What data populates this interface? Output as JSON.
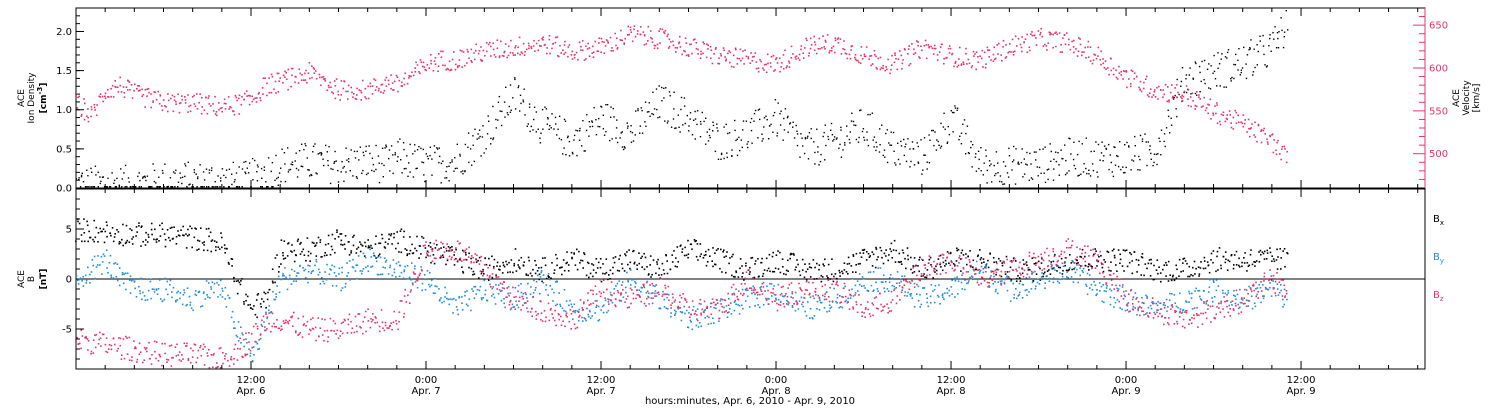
{
  "chart_data": [
    {
      "type": "scatter",
      "panel": "top",
      "ylabel_left": {
        "line1": "ACE",
        "line2": "Ion Density",
        "unit": "[cm",
        "unit_sup": "-3",
        "unit_end": "]"
      },
      "ylabel_right": {
        "line1": "ACE",
        "line2": "Velocity",
        "unit": "[km/s]"
      },
      "ylim_left": [
        0,
        2.3
      ],
      "yticks_left": [
        "0.0",
        "0.5",
        "1.0",
        "1.5",
        "2.0"
      ],
      "ylim_right": [
        460,
        670
      ],
      "yticks_right": [
        "500",
        "550",
        "600",
        "650"
      ],
      "x_range_hours": [
        0,
        92.5
      ],
      "series": [
        {
          "color": "#000000",
          "axis": "left",
          "x": [
            0,
            2,
            4,
            6,
            8,
            10,
            11.5,
            13,
            14,
            16,
            18,
            20,
            21.5,
            22,
            24,
            26,
            28,
            30,
            32,
            34,
            36,
            38,
            40,
            42,
            44,
            46,
            48,
            50,
            52,
            54,
            56,
            58,
            60,
            62,
            64,
            66,
            68,
            70,
            72,
            74,
            76,
            78,
            80,
            82,
            83
          ],
          "y": [
            0.05,
            0.05,
            0.05,
            0.1,
            0.1,
            0.1,
            0.1,
            0.2,
            0.3,
            0.35,
            0.3,
            0.35,
            0.3,
            0.4,
            0.3,
            0.35,
            0.7,
            1.2,
            0.8,
            0.6,
            0.9,
            0.7,
            1.1,
            0.9,
            0.6,
            0.7,
            0.9,
            0.5,
            0.6,
            0.8,
            0.5,
            0.4,
            0.9,
            0.3,
            0.3,
            0.3,
            0.4,
            0.4,
            0.4,
            0.5,
            1.4,
            1.5,
            1.6,
            1.8,
            2.1
          ]
        },
        {
          "color": "#e8336a",
          "axis": "right",
          "x": [
            0,
            1,
            2,
            3,
            4,
            6,
            8,
            10,
            11.5,
            12,
            13,
            14,
            16,
            18,
            20,
            21.5,
            22,
            24,
            25,
            26,
            28,
            30,
            32,
            34,
            36,
            38,
            40,
            42,
            44,
            46,
            48,
            50,
            52,
            54,
            56,
            58,
            60,
            62,
            64,
            66,
            68,
            70,
            72,
            74,
            76,
            78,
            80,
            82,
            83
          ],
          "y": [
            560,
            545,
            575,
            580,
            570,
            560,
            560,
            555,
            560,
            565,
            580,
            585,
            595,
            575,
            575,
            585,
            580,
            605,
            610,
            610,
            620,
            625,
            630,
            620,
            625,
            640,
            635,
            625,
            615,
            610,
            605,
            625,
            630,
            615,
            605,
            625,
            615,
            610,
            625,
            635,
            630,
            615,
            590,
            575,
            570,
            550,
            535,
            515,
            495
          ]
        }
      ]
    },
    {
      "type": "scatter",
      "panel": "bottom",
      "ylabel": {
        "line1": "ACE",
        "line2": "B",
        "unit": "[nT]"
      },
      "ylim": [
        -9,
        9
      ],
      "yticks": [
        "-5",
        "0",
        "5"
      ],
      "zero_line": true,
      "legend": [
        {
          "label": "B",
          "sub": "x",
          "color": "#000000"
        },
        {
          "label": "B",
          "sub": "y",
          "color": "#1e8fe0"
        },
        {
          "label": "B",
          "sub": "z",
          "color": "#e8336a"
        }
      ],
      "x_range_hours": [
        0,
        92.5
      ],
      "series": [
        {
          "color": "#000000",
          "x": [
            0,
            2,
            4,
            6,
            8,
            9,
            10,
            11,
            12,
            13,
            14,
            16,
            18,
            20,
            22,
            24,
            26,
            28,
            30,
            32,
            34,
            36,
            38,
            40,
            42,
            44,
            46,
            48,
            50,
            52,
            54,
            56,
            58,
            60,
            62,
            64,
            66,
            68,
            70,
            72,
            74,
            76,
            78,
            80,
            82,
            83
          ],
          "y": [
            5,
            4.8,
            4.5,
            4.5,
            4.2,
            4,
            3.5,
            0,
            -3,
            -2,
            3,
            3,
            4,
            3,
            4,
            3,
            2,
            1,
            2,
            1,
            2,
            1,
            2,
            1,
            3,
            2,
            1,
            2,
            1,
            1,
            2,
            3,
            1,
            2,
            2,
            1,
            1,
            2,
            2,
            2,
            1,
            1,
            2,
            2,
            2,
            2
          ]
        },
        {
          "color": "#1e8fe0",
          "x": [
            0,
            2,
            3,
            4,
            6,
            8,
            9,
            10,
            11,
            12,
            13,
            14,
            16,
            18,
            20,
            22,
            24,
            26,
            28,
            30,
            32,
            34,
            36,
            38,
            40,
            42,
            44,
            46,
            48,
            50,
            52,
            54,
            56,
            58,
            60,
            62,
            64,
            66,
            68,
            70,
            72,
            74,
            76,
            78,
            80,
            82,
            83
          ],
          "y": [
            0,
            2,
            0,
            -1,
            -1,
            -2,
            -1,
            -1,
            -5,
            -8,
            -4,
            0,
            1,
            0,
            2,
            1,
            0,
            -3,
            -1,
            -2,
            0,
            -3,
            -3,
            0,
            -2,
            -4,
            -3,
            -2,
            -1,
            -3,
            -2,
            0,
            0,
            -2,
            -1,
            1,
            -1,
            0,
            1,
            -1,
            -2,
            -3,
            -2,
            -1,
            -2,
            -1,
            -2
          ]
        },
        {
          "color": "#e8336a",
          "x": [
            0,
            2,
            4,
            6,
            8,
            10,
            11,
            12,
            13,
            14,
            16,
            18,
            20,
            22,
            24,
            26,
            28,
            30,
            32,
            34,
            36,
            38,
            40,
            42,
            44,
            46,
            48,
            50,
            52,
            54,
            56,
            58,
            60,
            62,
            64,
            66,
            68,
            70,
            72,
            74,
            76,
            78,
            80,
            82,
            83
          ],
          "y": [
            -6,
            -6.5,
            -7,
            -7.5,
            -7.5,
            -8,
            -7,
            -6,
            -4,
            -4,
            -5,
            -5,
            -4,
            -4,
            3,
            3,
            1,
            -2,
            -3,
            -4,
            -1,
            -2,
            -1,
            -3,
            -3,
            0,
            -2,
            -1,
            -1,
            -3,
            -2,
            1,
            2,
            0,
            1,
            2,
            3,
            2,
            -2,
            -3,
            -4,
            -3,
            -2,
            0,
            -1
          ]
        }
      ]
    }
  ],
  "x_axis": {
    "ticks": [
      {
        "hour": 12,
        "time": "12:00",
        "date": "Apr. 6"
      },
      {
        "hour": 24,
        "time": "0:00",
        "date": "Apr. 7"
      },
      {
        "hour": 36,
        "time": "12:00",
        "date": "Apr. 7"
      },
      {
        "hour": 48,
        "time": "0:00",
        "date": "Apr. 8"
      },
      {
        "hour": 60,
        "time": "12:00",
        "date": "Apr. 8"
      },
      {
        "hour": 72,
        "time": "0:00",
        "date": "Apr. 9"
      },
      {
        "hour": 84,
        "time": "12:00",
        "date": "Apr. 9"
      }
    ],
    "xlabel": "hours:minutes, Apr.  6, 2010 - Apr.  9, 2010"
  }
}
